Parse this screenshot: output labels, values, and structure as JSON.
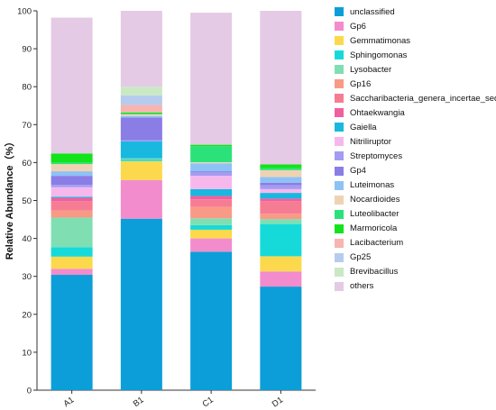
{
  "chart_data": {
    "type": "bar",
    "stacked": true,
    "title": "",
    "xlabel": "",
    "ylabel": "Relative Abundance（%）",
    "ylim": [
      0,
      100
    ],
    "yticks": [
      0,
      10,
      20,
      30,
      40,
      50,
      60,
      70,
      80,
      90,
      100
    ],
    "grid": false,
    "legend_position": "right",
    "categories": [
      "A1",
      "B1",
      "C1",
      "D1"
    ],
    "series": [
      {
        "name": "unclassified",
        "color": "#0b9ed9",
        "values": [
          30.4,
          45.2,
          36.5,
          27.3
        ]
      },
      {
        "name": "Gp6",
        "color": "#f28ccd",
        "values": [
          1.6,
          10.2,
          3.5,
          4.0
        ]
      },
      {
        "name": "Gemmatimonas",
        "color": "#fcd94c",
        "values": [
          3.2,
          5.0,
          2.3,
          4.0
        ]
      },
      {
        "name": "Sphingomonas",
        "color": "#16dada",
        "values": [
          2.5,
          0.4,
          1.2,
          8.5
        ]
      },
      {
        "name": "Lysobacter",
        "color": "#7fdfb2",
        "values": [
          7.8,
          0.3,
          1.8,
          1.3
        ]
      },
      {
        "name": "Gp16",
        "color": "#f99a86",
        "values": [
          1.9,
          0.0,
          3.0,
          1.4
        ]
      },
      {
        "name": "Saccharibacteria_genera_incertae_sedis",
        "color": "#f67c94",
        "values": [
          2.4,
          0.0,
          2.0,
          3.3
        ]
      },
      {
        "name": "Ohtaekwangia",
        "color": "#f0609f",
        "values": [
          0.9,
          0.0,
          0.9,
          0.7
        ]
      },
      {
        "name": "Gaiella",
        "color": "#18b8e0",
        "values": [
          0.3,
          4.5,
          1.8,
          1.5
        ]
      },
      {
        "name": "Nitriliruptor",
        "color": "#f6b8ec",
        "values": [
          2.5,
          0.0,
          3.5,
          1.0
        ]
      },
      {
        "name": "Streptomyces",
        "color": "#a49cf2",
        "values": [
          0.6,
          0.3,
          0.9,
          1.0
        ]
      },
      {
        "name": "Gp4",
        "color": "#8a7de6",
        "values": [
          2.4,
          6.0,
          0.3,
          0.7
        ]
      },
      {
        "name": "Luteimonas",
        "color": "#8dc2f5",
        "values": [
          1.2,
          0.4,
          2.1,
          1.5
        ]
      },
      {
        "name": "Nocardioides",
        "color": "#efd2b4",
        "values": [
          1.9,
          0.4,
          0.3,
          1.8
        ]
      },
      {
        "name": "Luteolibacter",
        "color": "#2be27a",
        "values": [
          0.4,
          0.2,
          4.2,
          0.5
        ]
      },
      {
        "name": "Marmoricola",
        "color": "#12e31a",
        "values": [
          2.4,
          0.3,
          0.4,
          1.0
        ]
      },
      {
        "name": "Lacibacterium",
        "color": "#f7b4b0",
        "values": [
          0.0,
          2.0,
          0.0,
          0.0
        ]
      },
      {
        "name": "Gp25",
        "color": "#b6ccee",
        "values": [
          0.0,
          2.5,
          0.0,
          0.0
        ]
      },
      {
        "name": "Brevibacillus",
        "color": "#cae8c4",
        "values": [
          0.0,
          2.3,
          0.0,
          0.0
        ]
      },
      {
        "name": "others",
        "color": "#e4cae4",
        "values": [
          35.8,
          20.0,
          34.8,
          40.5
        ]
      }
    ]
  }
}
